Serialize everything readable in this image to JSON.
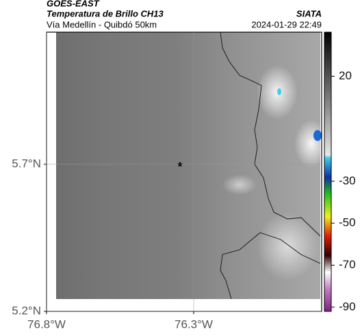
{
  "header": {
    "product": "GOES-EAST",
    "title": "Temperatura de Brillo CH13",
    "org": "SIATA",
    "region": "Vía Medellín - Quibdó 50km",
    "datetime": "2024-01-29 22:49"
  },
  "map": {
    "lat_lim": [
      5.2,
      6.149
    ],
    "lon_lim": [
      -76.8,
      -75.865
    ],
    "lat_ticks": [
      {
        "value": 5.7,
        "label": "5.7°N"
      },
      {
        "value": 5.2,
        "label": "5.2°N"
      }
    ],
    "lon_ticks": [
      {
        "value": -76.8,
        "label": "76.8°W"
      },
      {
        "value": -76.3,
        "label": "76.3°W"
      }
    ]
  },
  "colorbar": {
    "lim": [
      -92,
      41
    ],
    "ticks": [
      20,
      -30,
      -50,
      -70,
      -90
    ]
  }
}
